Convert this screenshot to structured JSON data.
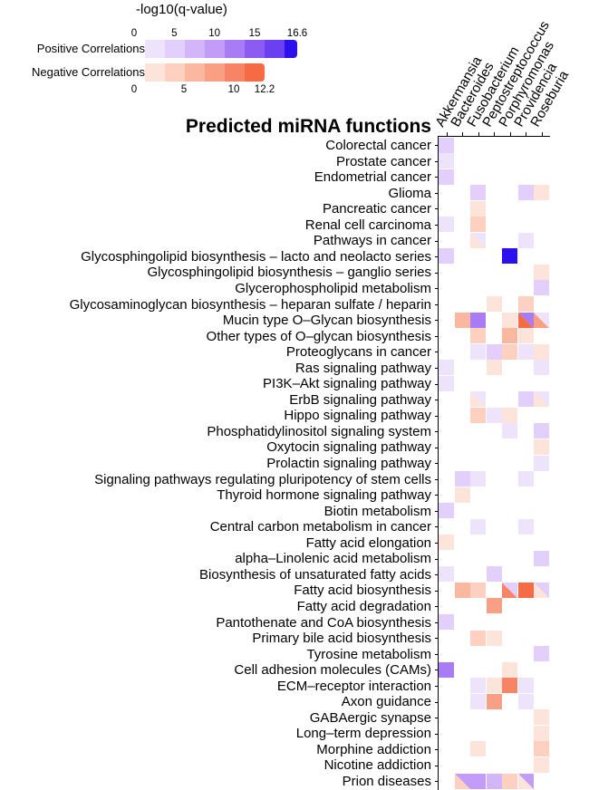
{
  "chart_data": {
    "type": "heatmap",
    "title": "Predicted miRNA functions",
    "legend": {
      "title": "-log10(q-value)",
      "positive": {
        "label": "Positive Correlations",
        "ticks": [
          "0",
          "5",
          "10",
          "15",
          "16.6"
        ],
        "max": 16.6,
        "colors": [
          "#ede3fb",
          "#e2cffb",
          "#d3b6fa",
          "#c39cf8",
          "#a77cf5",
          "#8c5cf2",
          "#6b40f0",
          "#2c10ee"
        ]
      },
      "negative": {
        "label": "Negative Correlations",
        "ticks": [
          "0",
          "5",
          "10",
          "12.2"
        ],
        "max": 12.2,
        "colors": [
          "#fde4da",
          "#fdd0c0",
          "#fbb8a0",
          "#f99f84",
          "#f78467",
          "#f66a46"
        ]
      }
    },
    "columns": [
      "Akkermansia",
      "Bacteroides",
      "Fusobacterium",
      "Peptostreptococcus",
      "Porphyromonas",
      "Providencia",
      "Roseburia"
    ],
    "cell_encoding": "p# = positive level index into positive.colors (1-based), n# = negative level, 'nX/pY' = split cell (lower-left negative, upper-right positive), '' = not significant",
    "rows": [
      {
        "label": "Colorectal cancer",
        "cells": [
          "p2",
          "",
          "",
          "",
          "",
          "",
          ""
        ]
      },
      {
        "label": "Prostate cancer",
        "cells": [
          "p1",
          "",
          "",
          "",
          "",
          "",
          ""
        ]
      },
      {
        "label": "Endometrial cancer",
        "cells": [
          "p2",
          "",
          "",
          "",
          "",
          "",
          ""
        ]
      },
      {
        "label": "Glioma",
        "cells": [
          "",
          "",
          "p2",
          "",
          "",
          "p2",
          "n1"
        ]
      },
      {
        "label": "Pancreatic cancer",
        "cells": [
          "",
          "",
          "n1",
          "",
          "",
          "",
          ""
        ]
      },
      {
        "label": "Renal cell carcinoma",
        "cells": [
          "p1",
          "",
          "n2",
          "",
          "",
          "",
          ""
        ]
      },
      {
        "label": "Pathways in cancer",
        "cells": [
          "",
          "",
          "n1/p1",
          "",
          "",
          "p1",
          ""
        ]
      },
      {
        "label": "Glycosphingolipid biosynthesis – lacto and neolacto series",
        "cells": [
          "p2",
          "",
          "",
          "",
          "p8",
          "",
          ""
        ]
      },
      {
        "label": "Glycosphingolipid biosynthesis – ganglio series",
        "cells": [
          "",
          "",
          "",
          "",
          "",
          "",
          "n1"
        ]
      },
      {
        "label": "Glycerophospholipid metabolism",
        "cells": [
          "",
          "",
          "",
          "",
          "",
          "",
          "p2"
        ]
      },
      {
        "label": "Glycosaminoglycan biosynthesis – heparan sulfate / heparin",
        "cells": [
          "",
          "",
          "",
          "n1",
          "",
          "n2",
          ""
        ]
      },
      {
        "label": "Mucin type O–Glycan biosynthesis",
        "cells": [
          "",
          "n3",
          "p5",
          "",
          "n1",
          "n6/p5",
          "n4/p1"
        ]
      },
      {
        "label": "Other types of O–glycan biosynthesis",
        "cells": [
          "",
          "",
          "n2",
          "",
          "n3",
          "n1",
          ""
        ]
      },
      {
        "label": "Proteoglycans in cancer",
        "cells": [
          "",
          "",
          "p1",
          "p2",
          "n2",
          "p1",
          "n1"
        ]
      },
      {
        "label": "Ras signaling pathway",
        "cells": [
          "p1",
          "",
          "",
          "n1",
          "",
          "",
          "p1"
        ]
      },
      {
        "label": "PI3K–Akt signaling pathway",
        "cells": [
          "p1",
          "",
          "",
          "",
          "",
          "",
          ""
        ]
      },
      {
        "label": "ErbB signaling pathway",
        "cells": [
          "",
          "",
          "n1/p1",
          "",
          "",
          "p2",
          "n1/p1"
        ]
      },
      {
        "label": "Hippo signaling pathway",
        "cells": [
          "",
          "",
          "n2",
          "p1",
          "n1",
          "",
          ""
        ]
      },
      {
        "label": "Phosphatidylinositol signaling system",
        "cells": [
          "",
          "",
          "",
          "",
          "p1",
          "",
          "p2"
        ]
      },
      {
        "label": "Oxytocin signaling pathway",
        "cells": [
          "",
          "",
          "",
          "",
          "",
          "",
          "n1"
        ]
      },
      {
        "label": "Prolactin signaling pathway",
        "cells": [
          "",
          "",
          "",
          "",
          "",
          "",
          "p1"
        ]
      },
      {
        "label": "Signaling pathways regulating pluripotency of stem cells",
        "cells": [
          "",
          "p2",
          "p1",
          "",
          "",
          "p1",
          ""
        ]
      },
      {
        "label": "Thyroid hormone signaling pathway",
        "cells": [
          "",
          "n1",
          "",
          "",
          "",
          "",
          ""
        ]
      },
      {
        "label": "Biotin metabolism",
        "cells": [
          "p2",
          "",
          "",
          "",
          "",
          "",
          ""
        ]
      },
      {
        "label": "Central carbon metabolism in cancer",
        "cells": [
          "",
          "",
          "p1",
          "",
          "",
          "p1",
          ""
        ]
      },
      {
        "label": "Fatty acid elongation",
        "cells": [
          "n1",
          "",
          "",
          "",
          "",
          "",
          ""
        ]
      },
      {
        "label": "alpha–Linolenic acid metabolism",
        "cells": [
          "",
          "",
          "",
          "",
          "",
          "",
          "p2"
        ]
      },
      {
        "label": "Biosynthesis of unsaturated fatty acids",
        "cells": [
          "p1",
          "",
          "",
          "p2",
          "",
          "",
          ""
        ]
      },
      {
        "label": "Fatty acid biosynthesis",
        "cells": [
          "",
          "n3",
          "n2",
          "",
          "n5/p2",
          "n6",
          "n1/p2"
        ]
      },
      {
        "label": "Fatty acid degradation",
        "cells": [
          "",
          "",
          "",
          "n4",
          "",
          "",
          ""
        ]
      },
      {
        "label": "Pantothenate and CoA biosynthesis",
        "cells": [
          "p2",
          "",
          "",
          "",
          "",
          "",
          ""
        ]
      },
      {
        "label": "Primary bile acid biosynthesis",
        "cells": [
          "",
          "",
          "n2",
          "n1",
          "",
          "",
          ""
        ]
      },
      {
        "label": "Tyrosine metabolism",
        "cells": [
          "",
          "",
          "",
          "",
          "",
          "",
          "p2"
        ]
      },
      {
        "label": "Cell adhesion molecules (CAMs)",
        "cells": [
          "p5",
          "",
          "",
          "",
          "n1",
          "",
          ""
        ]
      },
      {
        "label": "ECM–receptor interaction",
        "cells": [
          "",
          "",
          "p1",
          "n1",
          "n5",
          "p1",
          ""
        ]
      },
      {
        "label": "Axon guidance",
        "cells": [
          "",
          "",
          "p1",
          "n4",
          "",
          "p1",
          ""
        ]
      },
      {
        "label": "GABAergic synapse",
        "cells": [
          "",
          "",
          "",
          "",
          "",
          "",
          "n1"
        ]
      },
      {
        "label": "Long–term depression",
        "cells": [
          "",
          "",
          "",
          "",
          "",
          "",
          "n1"
        ]
      },
      {
        "label": "Morphine addiction",
        "cells": [
          "",
          "",
          "n1",
          "",
          "",
          "",
          "n2"
        ]
      },
      {
        "label": "Nicotine addiction",
        "cells": [
          "",
          "",
          "",
          "",
          "",
          "",
          "n1"
        ]
      },
      {
        "label": "Prion diseases",
        "cells": [
          "",
          "n2/p4",
          "p4",
          "p3",
          "n2",
          "n1/p4",
          ""
        ]
      }
    ]
  }
}
